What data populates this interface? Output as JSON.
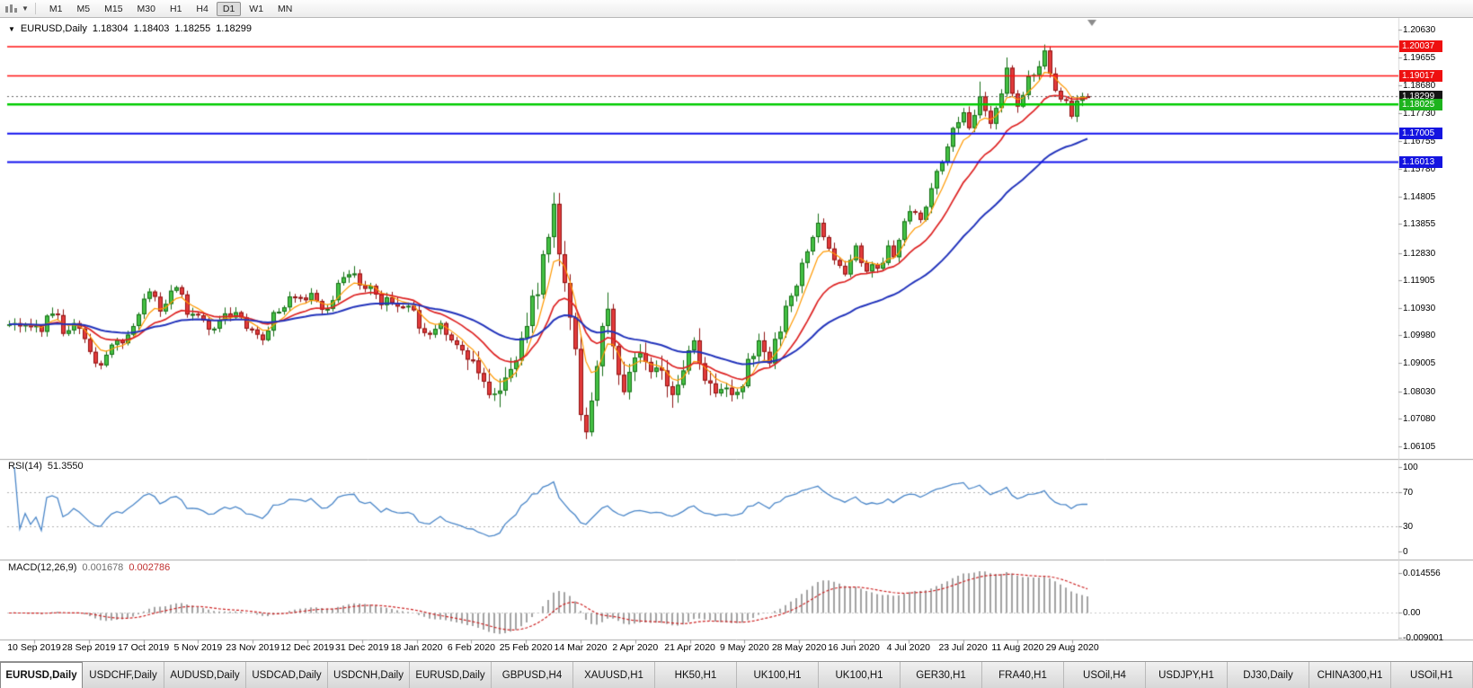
{
  "toolbar": {
    "timeframes": [
      "M1",
      "M5",
      "M15",
      "M30",
      "H1",
      "H4",
      "D1",
      "W1",
      "MN"
    ],
    "selected": "D1"
  },
  "chart_header": {
    "symbol": "EURUSD,Daily",
    "open": "1.18304",
    "high": "1.18403",
    "low": "1.18255",
    "close": "1.18299"
  },
  "price_tags": [
    {
      "label": "1.20037",
      "price": 1.20037,
      "bg": "#ee1010"
    },
    {
      "label": "1.19017",
      "price": 1.19017,
      "bg": "#ee1010"
    },
    {
      "label": "1.18299",
      "price": 1.18299,
      "bg": "#141414"
    },
    {
      "label": "1.18025",
      "price": 1.18025,
      "bg": "#1db31d"
    },
    {
      "label": "1.17005",
      "price": 1.17005,
      "bg": "#1414e0"
    },
    {
      "label": "1.16013",
      "price": 1.16013,
      "bg": "#1414e0"
    }
  ],
  "rsi_panel": {
    "name": "RSI(14)",
    "value": "51.3550",
    "ticks": [
      {
        "label": "100",
        "v": 100
      },
      {
        "label": "70",
        "v": 70
      },
      {
        "label": "30",
        "v": 30
      },
      {
        "label": "0",
        "v": 0
      }
    ]
  },
  "macd_panel": {
    "name": "MACD(12,26,9)",
    "macd_value": "0.001678",
    "signal_value": "0.002786",
    "ticks": [
      {
        "label": "0.014556",
        "v": 0.014556
      },
      {
        "label": "0.00",
        "v": 0
      },
      {
        "label": "-0.009001",
        "v": -0.009001
      }
    ]
  },
  "tabs": [
    {
      "label": "EURUSD,Daily",
      "active": true
    },
    {
      "label": "USDCHF,Daily",
      "active": false
    },
    {
      "label": "AUDUSD,Daily",
      "active": false
    },
    {
      "label": "USDCAD,Daily",
      "active": false
    },
    {
      "label": "USDCNH,Daily",
      "active": false
    },
    {
      "label": "EURUSD,Daily",
      "active": false
    },
    {
      "label": "GBPUSD,H4",
      "active": false
    },
    {
      "label": "XAUUSD,H1",
      "active": false
    },
    {
      "label": "HK50,H1",
      "active": false
    },
    {
      "label": "UK100,H1",
      "active": false
    },
    {
      "label": "UK100,H1",
      "active": false
    },
    {
      "label": "GER30,H1",
      "active": false
    },
    {
      "label": "FRA40,H1",
      "active": false
    },
    {
      "label": "USOil,H4",
      "active": false
    },
    {
      "label": "USDJPY,H1",
      "active": false
    },
    {
      "label": "DJ30,Daily",
      "active": false
    },
    {
      "label": "CHINA300,H1",
      "active": false
    },
    {
      "label": "USOil,H1",
      "active": false
    }
  ],
  "chart_data": {
    "type": "candlestick",
    "title": "EURUSD,Daily",
    "ohlc_current": {
      "open": 1.18304,
      "high": 1.18403,
      "low": 1.18255,
      "close": 1.18299
    },
    "price_range": {
      "min": 1.06105,
      "max": 1.2063
    },
    "price_axis_ticks": [
      "1.20630",
      "1.19655",
      "1.18680",
      "1.17730",
      "1.16755",
      "1.15780",
      "1.14805",
      "1.13855",
      "1.12830",
      "1.11905",
      "1.10930",
      "1.09980",
      "1.09005",
      "1.08030",
      "1.07080",
      "1.06105"
    ],
    "dates": [
      "10 Sep 2019",
      "28 Sep 2019",
      "17 Oct 2019",
      "5 Nov 2019",
      "23 Nov 2019",
      "12 Dec 2019",
      "31 Dec 2019",
      "18 Jan 2020",
      "6 Feb 2020",
      "25 Feb 2020",
      "14 Mar 2020",
      "2 Apr 2020",
      "21 Apr 2020",
      "9 May 2020",
      "28 May 2020",
      "16 Jun 2020",
      "4 Jul 2020",
      "23 Jul 2020",
      "11 Aug 2020",
      "29 Aug 2020"
    ],
    "closes": [
      1.1036,
      1.104,
      1.1029,
      1.1034,
      1.1026,
      1.103,
      1.101,
      1.1066,
      1.1073,
      1.1068,
      1.1003,
      1.1015,
      1.104,
      1.1021,
      1.0985,
      1.094,
      1.09,
      1.0893,
      1.093,
      1.0965,
      1.0981,
      1.097,
      1.1,
      1.103,
      1.1071,
      1.1125,
      1.115,
      1.1132,
      1.1081,
      1.1107,
      1.1153,
      1.1165,
      1.114,
      1.107,
      1.1072,
      1.1067,
      1.1049,
      1.1018,
      1.1021,
      1.105,
      1.1074,
      1.106,
      1.1078,
      1.106,
      1.1021,
      1.1018,
      1.1,
      1.0981,
      1.1014,
      1.1078,
      1.108,
      1.1095,
      1.1133,
      1.1131,
      1.1129,
      1.112,
      1.1145,
      1.1117,
      1.1087,
      1.109,
      1.112,
      1.118,
      1.12,
      1.121,
      1.1213,
      1.1172,
      1.116,
      1.117,
      1.114,
      1.1103,
      1.113,
      1.111,
      1.1098,
      1.1095,
      1.11,
      1.1085,
      1.1022,
      1.1006,
      1.1,
      1.102,
      1.104,
      1.1,
      1.098,
      1.0964,
      1.0945,
      1.0913,
      1.091,
      1.0866,
      1.0836,
      1.079,
      1.0794,
      1.0805,
      1.085,
      1.088,
      1.091,
      1.0988,
      1.103,
      1.1135,
      1.114,
      1.128,
      1.134,
      1.1456,
      1.128,
      1.118,
      1.106,
      1.095,
      1.072,
      1.066,
      1.077,
      1.089,
      1.103,
      1.109,
      1.096,
      1.086,
      1.08,
      1.087,
      1.092,
      1.0935,
      1.0905,
      1.087,
      1.0885,
      1.0875,
      1.082,
      1.079,
      1.0825,
      1.0875,
      1.0945,
      1.098,
      1.09,
      1.084,
      1.083,
      1.0795,
      1.081,
      1.0815,
      1.079,
      1.08,
      1.082,
      1.0915,
      1.0925,
      1.098,
      1.094,
      1.09,
      1.0985,
      1.101,
      1.11,
      1.1135,
      1.117,
      1.125,
      1.129,
      1.134,
      1.139,
      1.134,
      1.13,
      1.126,
      1.124,
      1.121,
      1.126,
      1.131,
      1.125,
      1.122,
      1.1245,
      1.123,
      1.125,
      1.131,
      1.127,
      1.133,
      1.1395,
      1.143,
      1.1425,
      1.14,
      1.1445,
      1.151,
      1.157,
      1.16,
      1.1655,
      1.172,
      1.174,
      1.1775,
      1.172,
      1.1765,
      1.183,
      1.178,
      1.1735,
      1.179,
      1.184,
      1.193,
      1.184,
      1.1795,
      1.1835,
      1.19,
      1.1905,
      1.1935,
      1.199,
      1.191,
      1.185,
      1.182,
      1.1815,
      1.176,
      1.1815,
      1.1831,
      1.18299
    ],
    "extremes": {
      "17": [
        null,
        1.0879
      ],
      "64": [
        1.1239,
        null
      ],
      "89": [
        null,
        1.0778
      ],
      "101": [
        1.1495,
        null
      ],
      "107": [
        null,
        1.0636
      ],
      "111": [
        1.1147,
        null
      ],
      "150": [
        1.1422,
        null
      ],
      "180": [
        1.1882,
        null
      ],
      "185": [
        1.1966,
        null
      ],
      "192": [
        1.2011,
        null
      ],
      "197": [
        null,
        1.1752
      ],
      "200": [
        1.18403,
        1.18255
      ]
    },
    "candle_colors": {
      "up": "#44c144",
      "up_border": "#166e16",
      "down": "#e23b3b",
      "down_border": "#8f1212"
    },
    "moving_averages": [
      {
        "period": 6,
        "color": "#ff9900",
        "width": 1.2
      },
      {
        "period": 16,
        "color": "#dd2222",
        "width": 1.7
      },
      {
        "period": 40,
        "color": "#2233bb",
        "width": 2.0
      }
    ],
    "hlines": [
      {
        "price": 1.20037,
        "color": "#ff1111",
        "width": 1.5
      },
      {
        "price": 1.19017,
        "color": "#ff1111",
        "width": 1.5
      },
      {
        "price": 1.18025,
        "color": "#00cc00",
        "width": 2.4
      },
      {
        "price": 1.17005,
        "color": "#1111ee",
        "width": 2.0
      },
      {
        "price": 1.16013,
        "color": "#1111ee",
        "width": 2.0
      }
    ],
    "current_price": {
      "price": 1.18299,
      "line_color": "#666666"
    },
    "rsi": {
      "period": 14,
      "current": 51.355,
      "color": "#4a86c8",
      "levels": [
        70,
        30
      ]
    },
    "macd": {
      "fast": 12,
      "slow": 26,
      "signal": 9,
      "current_macd": 0.001678,
      "current_signal": 0.002786,
      "hist_color": "#a2a2a2",
      "signal_color": "#cc2222",
      "axis_max": 0.014556,
      "axis_min": -0.009001
    }
  }
}
